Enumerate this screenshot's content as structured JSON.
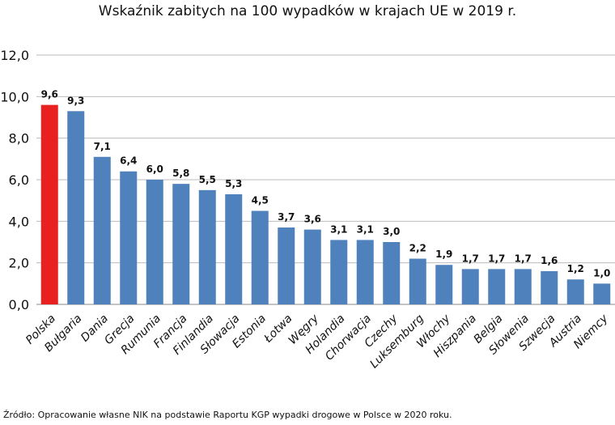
{
  "chart_data": {
    "type": "bar",
    "title": "Wskaźnik zabitych na 100 wypadków w krajach UE w 2019 r.",
    "categories": [
      "Polska",
      "Bułgaria",
      "Dania",
      "Grecja",
      "Rumunia",
      "Francja",
      "Finlandia",
      "Słowacja",
      "Estonia",
      "Łotwa",
      "Węgry",
      "Holandia",
      "Chorwacja",
      "Czechy",
      "Luksemburg",
      "Włochy",
      "Hiszpania",
      "Belgia",
      "Słowenia",
      "Szwecja",
      "Austria",
      "Niemcy"
    ],
    "values": [
      9.6,
      9.3,
      7.1,
      6.4,
      6.0,
      5.8,
      5.5,
      5.3,
      4.5,
      3.7,
      3.6,
      3.1,
      3.1,
      3.0,
      2.2,
      1.9,
      1.7,
      1.7,
      1.7,
      1.6,
      1.2,
      1.0
    ],
    "data_labels": [
      "9,6",
      "9,3",
      "7,1",
      "6,4",
      "6,0",
      "5,8",
      "5,5",
      "5,3",
      "4,5",
      "3,7",
      "3,6",
      "3,1",
      "3,1",
      "3,0",
      "2,2",
      "1,9",
      "1,7",
      "1,7",
      "1,7",
      "1,6",
      "1,2",
      "1,0"
    ],
    "ylim": [
      0,
      12
    ],
    "yticks": [
      "0,0",
      "2,0",
      "4,0",
      "6,0",
      "8,0",
      "10,0",
      "12,0"
    ],
    "grid": true,
    "legend": "none",
    "colors": {
      "highlight": "#e8201f",
      "default": "#4f81bd"
    },
    "source": "Źródło: Opracowanie własne NIK na podstawie Raportu KGP wypadki drogowe w Polsce w 2020 roku."
  }
}
